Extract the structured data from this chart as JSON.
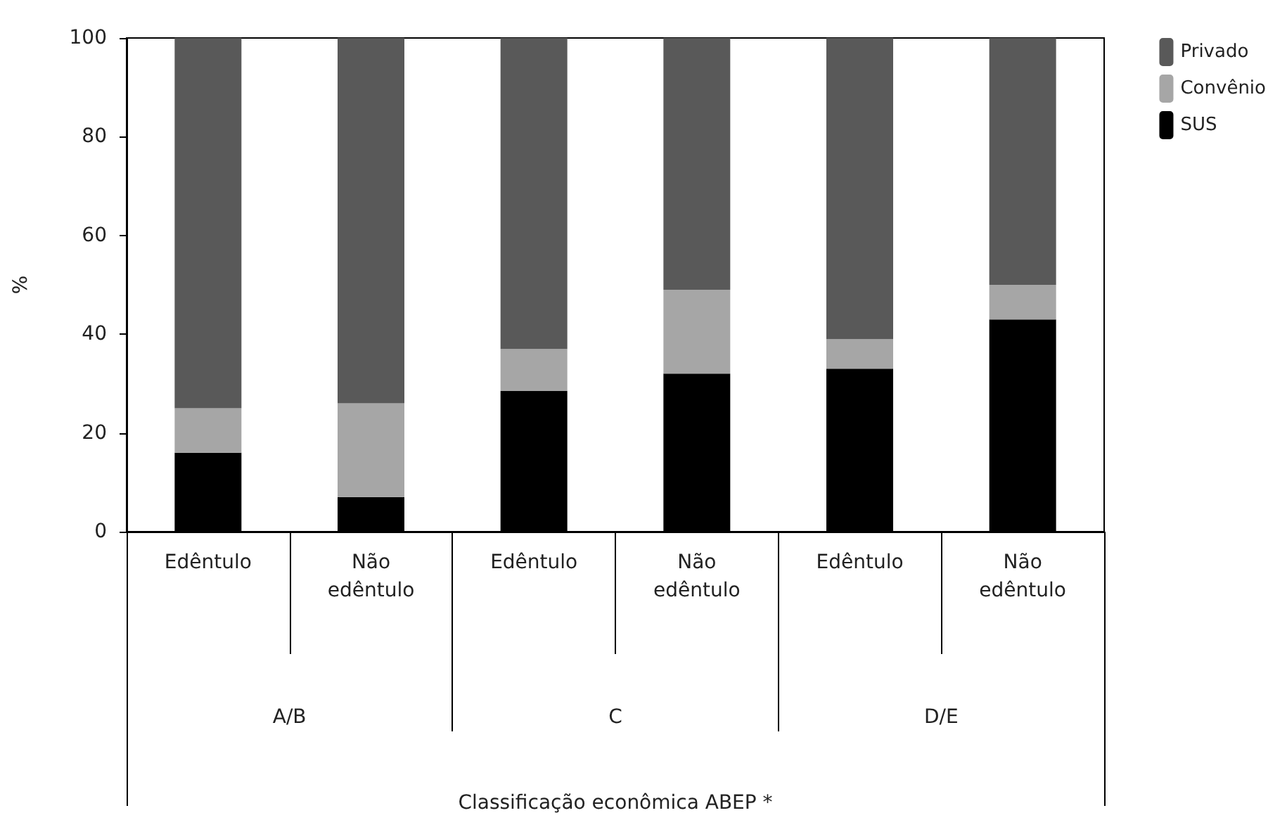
{
  "chart_data": {
    "type": "bar",
    "stacked": true,
    "ylabel": "%",
    "categories": [
      "Edêntulo",
      "Não\nedêntulo",
      "Edêntulo",
      "Não\nedêntulo",
      "Edêntulo",
      "Não\nedêntulo"
    ],
    "annotations": [
      "A/B",
      "C",
      "D/E",
      "Classificação econômica ABEP *"
    ],
    "series": [
      {
        "name": "SUS",
        "color": "#000000",
        "values": [
          16,
          7,
          28.5,
          32,
          33,
          43
        ]
      },
      {
        "name": "Convênio",
        "color": "#a6a6a6",
        "values": [
          9,
          19,
          8.5,
          17,
          6,
          7
        ]
      },
      {
        "name": "Privado",
        "color": "#595959",
        "values": [
          75,
          74,
          63,
          51,
          61,
          50
        ]
      }
    ],
    "ylim": [
      0,
      100
    ],
    "yticks": [
      0,
      20,
      40,
      60,
      80,
      100
    ],
    "grid": false,
    "legend": "top right"
  }
}
